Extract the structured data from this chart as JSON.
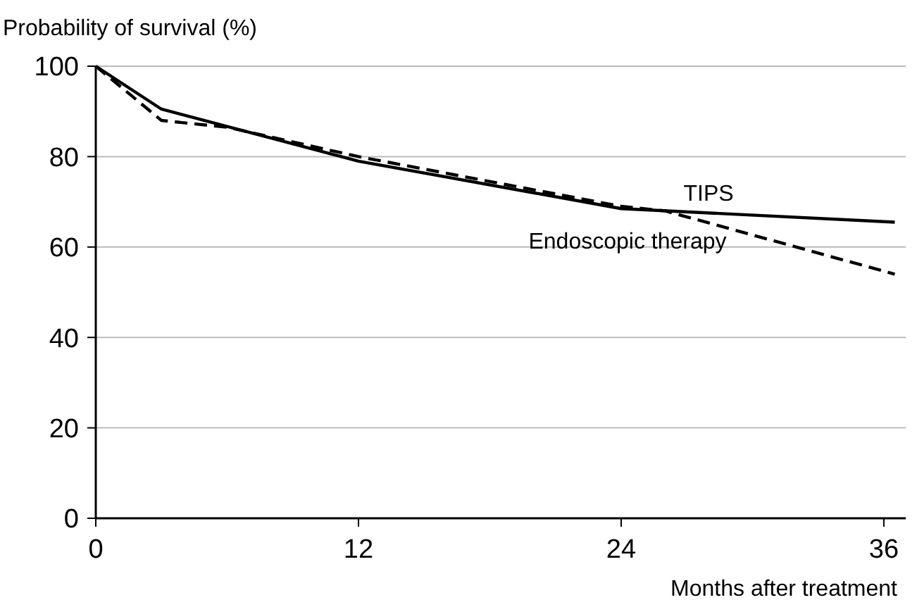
{
  "chart_data": {
    "type": "line",
    "xlabel": "Months after treatment",
    "ylabel": "Probability of survival (%)",
    "xlim": [
      0,
      37
    ],
    "xticks": [
      0,
      12,
      24,
      36
    ],
    "ylim": [
      0,
      100
    ],
    "yticks": [
      0,
      20,
      40,
      60,
      80,
      100
    ],
    "grid": "y",
    "marker": "none",
    "series": [
      {
        "name": "TIPS",
        "color": "#000000",
        "line_style": "solid",
        "x": [
          0,
          3,
          12,
          24,
          36.5
        ],
        "values": [
          100,
          90.5,
          79,
          68.5,
          65.5
        ]
      },
      {
        "name": "Endoscopic therapy",
        "color": "#000000",
        "line_style": "dashed",
        "x": [
          0,
          3,
          6,
          12,
          24,
          26,
          36.5
        ],
        "values": [
          100,
          88,
          86.5,
          80,
          69,
          68,
          54
        ]
      }
    ]
  }
}
